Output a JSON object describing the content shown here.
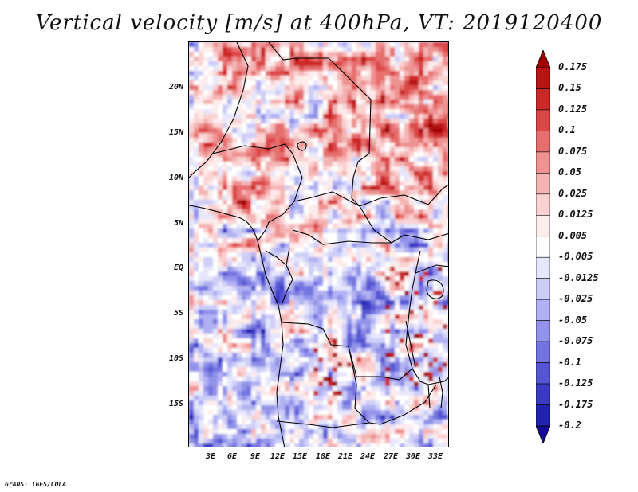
{
  "title": "Vertical velocity [m/s] at 400hPa, VT: 2019120400",
  "credit": "GrADS: IGES/COLA",
  "map": {
    "lat_labels": [
      "20N",
      "15N",
      "10N",
      "5N",
      "EQ",
      "5S",
      "10S",
      "15S"
    ],
    "lon_labels": [
      "3E",
      "6E",
      "9E",
      "12E",
      "15E",
      "18E",
      "21E",
      "24E",
      "27E",
      "30E",
      "33E"
    ]
  },
  "colorbar": {
    "labels": [
      "0.175",
      "0.15",
      "0.125",
      "0.1",
      "0.075",
      "0.05",
      "0.025",
      "0.0125",
      "0.005",
      "-0.005",
      "-0.0125",
      "-0.025",
      "-0.05",
      "-0.075",
      "-0.1",
      "-0.125",
      "-0.175",
      "-0.2"
    ],
    "colors": [
      "#a00000",
      "#b81414",
      "#cc2828",
      "#dc4646",
      "#e66e6e",
      "#ee9292",
      "#f5b4b4",
      "#fad2d2",
      "#fdecec",
      "#ffffff",
      "#e6e6fc",
      "#cdcdf8",
      "#b0b0f2",
      "#9292ea",
      "#7474e0",
      "#5656d4",
      "#3a3ac4",
      "#2222b0",
      "#120a96"
    ]
  }
}
